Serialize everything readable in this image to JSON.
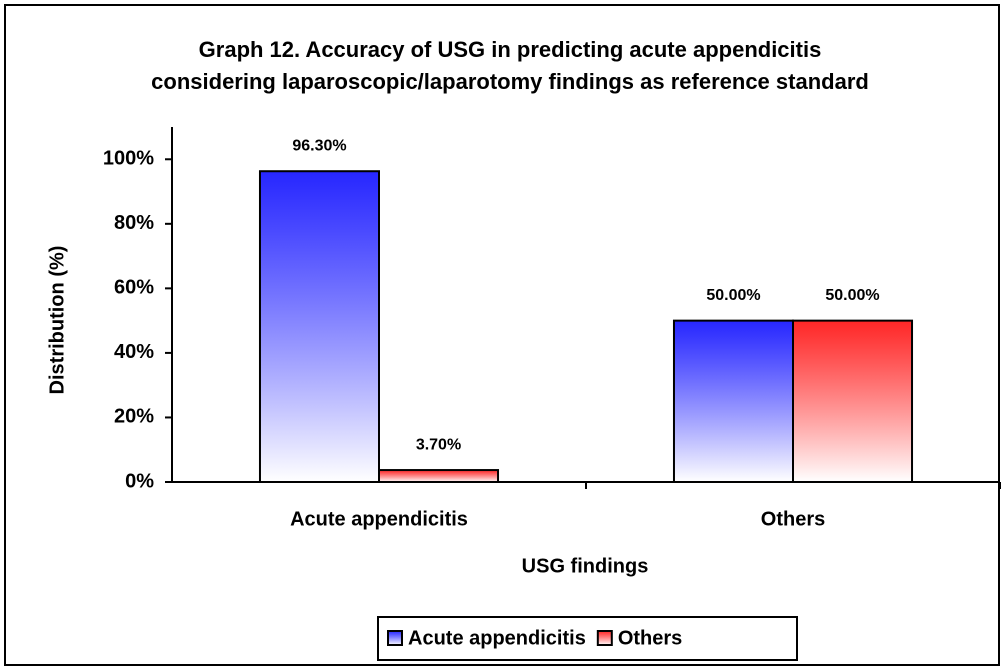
{
  "chart_data": {
    "type": "bar",
    "title": "Graph 12. Accuracy of USG in predicting acute appendicitis considering laparoscopic/laparotomy findings as reference standard",
    "xlabel": "USG findings",
    "ylabel": "Distribution (%)",
    "categories": [
      "Acute appendicitis",
      "Others"
    ],
    "series": [
      {
        "name": "Acute appendicitis",
        "color": "#0000ff",
        "values": [
          96.3,
          50
        ],
        "value_labels": [
          "96.30%",
          "50.00%"
        ]
      },
      {
        "name": "Others",
        "color": "#ff0000",
        "values": [
          3.7,
          50
        ],
        "value_labels": [
          "3.70%",
          "50.00%"
        ]
      }
    ],
    "ylim": [
      0,
      110
    ],
    "yticks": [
      {
        "value": 0,
        "label": "0%"
      },
      {
        "value": 20,
        "label": "20%"
      },
      {
        "value": 40,
        "label": "40%"
      },
      {
        "value": 60,
        "label": "60%"
      },
      {
        "value": 80,
        "label": "80%"
      },
      {
        "value": 100,
        "label": "100%"
      }
    ],
    "legend": "bottom"
  }
}
